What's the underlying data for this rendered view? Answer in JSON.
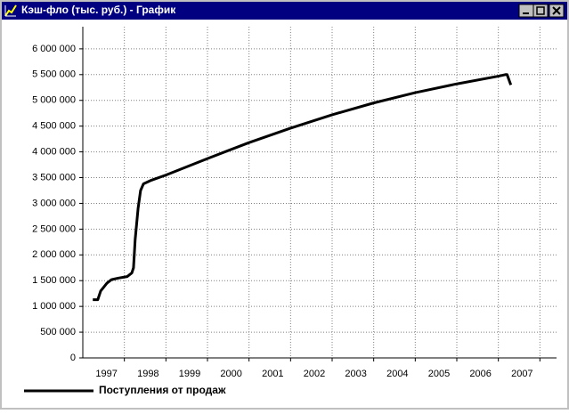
{
  "window": {
    "title": "Кэш-фло (тыс. руб.) - График"
  },
  "chart_data": {
    "type": "line",
    "x": [
      1996.24,
      1996.36,
      1996.43,
      1996.58,
      1996.69,
      1996.86,
      1997.07,
      1997.18,
      1997.22,
      1997.26,
      1997.33,
      1997.39,
      1997.46,
      1997.65,
      1998.0,
      1999.0,
      2000.0,
      2001.0,
      2002.0,
      2003.0,
      2004.0,
      2005.0,
      2006.0,
      2006.17,
      2006.21,
      2006.3
    ],
    "series": [
      {
        "name": "Поступления от продаж",
        "color": "#000000",
        "values": [
          1130000,
          1130000,
          1300000,
          1450000,
          1520000,
          1550000,
          1580000,
          1650000,
          1750000,
          2300000,
          2900000,
          3250000,
          3380000,
          3450000,
          3550000,
          3870000,
          4180000,
          4460000,
          4720000,
          4950000,
          5150000,
          5320000,
          5470000,
          5500000,
          5500000,
          5300000
        ]
      }
    ],
    "xlim": [
      1996,
      2007.4
    ],
    "xticks": [
      1997,
      1998,
      1999,
      2000,
      2001,
      2002,
      2003,
      2004,
      2005,
      2006,
      2007
    ],
    "ylim": [
      0,
      6430000
    ],
    "yticks": [
      {
        "value": 0,
        "label": "0"
      },
      {
        "value": 500000,
        "label": "500 000"
      },
      {
        "value": 1000000,
        "label": "1 000 000"
      },
      {
        "value": 1500000,
        "label": "1 500 000"
      },
      {
        "value": 2000000,
        "label": "2 000 000"
      },
      {
        "value": 2500000,
        "label": "2 500 000"
      },
      {
        "value": 3000000,
        "label": "3 000 000"
      },
      {
        "value": 3500000,
        "label": "3 500 000"
      },
      {
        "value": 4000000,
        "label": "4 000 000"
      },
      {
        "value": 4500000,
        "label": "4 500 000"
      },
      {
        "value": 5000000,
        "label": "5 000 000"
      },
      {
        "value": 5500000,
        "label": "5 500 000"
      },
      {
        "value": 6000000,
        "label": "6 000 000"
      }
    ],
    "grid": true
  }
}
